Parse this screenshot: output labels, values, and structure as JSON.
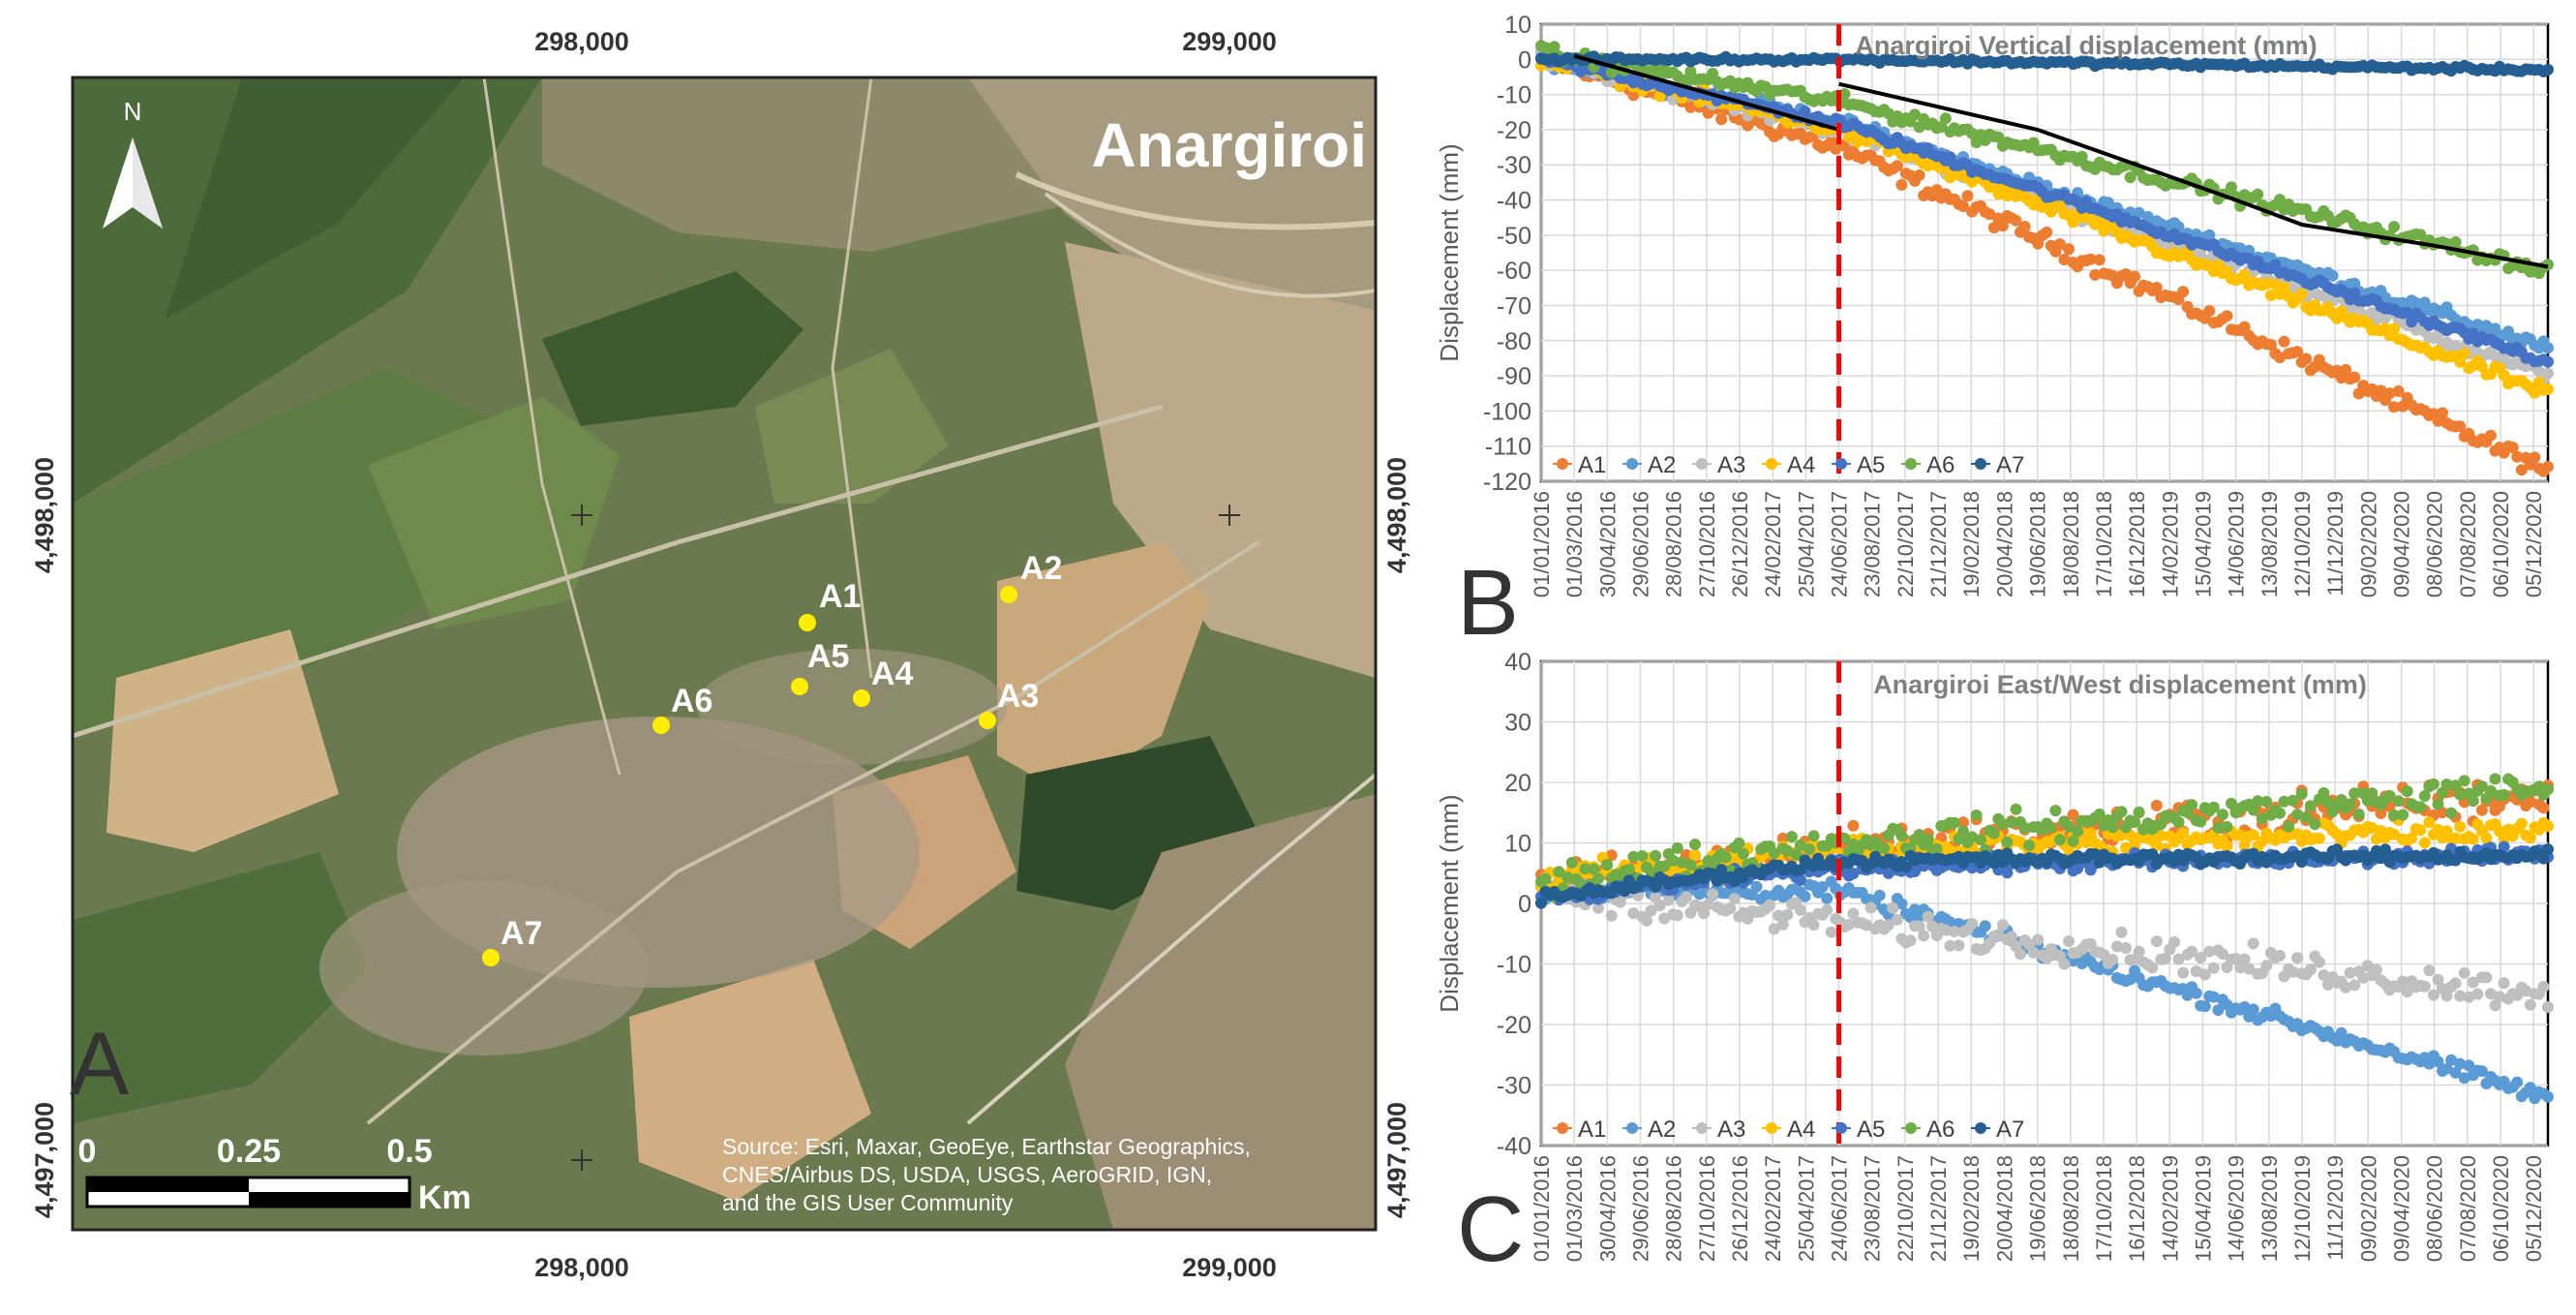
{
  "map": {
    "title": "Anargiroi",
    "panel_label": "A",
    "north_label": "N",
    "x_ticks_top": [
      "298,000",
      "299,000"
    ],
    "x_ticks_bottom": [
      "298,000",
      "299,000"
    ],
    "y_ticks_left": [
      "4,498,000",
      "4,497,000"
    ],
    "y_ticks_right": [
      "4,498,000",
      "4,497,000"
    ],
    "scale": {
      "labels": [
        "0",
        "0.25",
        "0.5"
      ],
      "unit": "Km"
    },
    "source_lines": [
      "Source: Esri, Maxar, GeoEye, Earthstar Geographics,",
      "CNES/Airbus DS, USDA, USGS, AeroGRID, IGN,",
      "and the GIS User Community"
    ],
    "points": [
      {
        "label": "A1"
      },
      {
        "label": "A2"
      },
      {
        "label": "A3"
      },
      {
        "label": "A4"
      },
      {
        "label": "A5"
      },
      {
        "label": "A6"
      },
      {
        "label": "A7"
      }
    ],
    "colors": {
      "points": "#ffee00",
      "label_text": "#ffffff"
    }
  },
  "chart_data": [
    {
      "panel_label": "B",
      "type": "scatter",
      "title": "Anargiroi Vertical displacement (mm)",
      "ylabel": "Displacement (mm)",
      "xlabel": "",
      "ylim": [
        -120,
        10
      ],
      "yticks": [
        10,
        0,
        -10,
        -20,
        -30,
        -40,
        -50,
        -60,
        -70,
        -80,
        -90,
        -100,
        -110,
        -120
      ],
      "xlim": [
        "01/01/2016",
        "31/12/2020"
      ],
      "xticks": [
        "01/01/2016",
        "01/03/2016",
        "30/04/2016",
        "29/06/2016",
        "28/08/2016",
        "27/10/2016",
        "26/12/2016",
        "24/02/2017",
        "25/04/2017",
        "24/06/2017",
        "23/08/2017",
        "22/10/2017",
        "21/12/2017",
        "19/02/2018",
        "20/04/2018",
        "19/06/2018",
        "18/08/2018",
        "17/10/2018",
        "16/12/2018",
        "14/02/2019",
        "15/04/2019",
        "14/06/2019",
        "13/08/2019",
        "12/10/2019",
        "11/12/2019",
        "09/02/2020",
        "09/04/2020",
        "08/06/2020",
        "07/08/2020",
        "06/10/2020",
        "05/12/2020"
      ],
      "event_line_date": "24/06/2017",
      "grid": true,
      "legend_position": "bottom-left",
      "series": [
        {
          "name": "A1",
          "color": "#ed7d31",
          "start": 0,
          "break": -25,
          "end": -117,
          "noise": 4
        },
        {
          "name": "A2",
          "color": "#5b9bd5",
          "start": 0,
          "break": -18,
          "end": -82,
          "noise": 3
        },
        {
          "name": "A3",
          "color": "#bfbfbf",
          "start": 0,
          "break": -20,
          "end": -90,
          "noise": 3
        },
        {
          "name": "A4",
          "color": "#ffc000",
          "start": 0,
          "break": -20,
          "end": -95,
          "noise": 3
        },
        {
          "name": "A5",
          "color": "#4472c4",
          "start": 0,
          "break": -18,
          "end": -86,
          "noise": 2
        },
        {
          "name": "A6",
          "color": "#70ad47",
          "start": 2,
          "break": -12,
          "end": -60,
          "noise": 3
        },
        {
          "name": "A7",
          "color": "#255e91",
          "start": 0,
          "break": 0,
          "end": -3,
          "noise": 1
        }
      ],
      "trend_lines": [
        {
          "label": "pre-event trend",
          "points": [
            [
              "01/03/2016",
              1
            ],
            [
              "24/06/2017",
              -20
            ]
          ]
        },
        {
          "label": "post-event trend",
          "points": [
            [
              "24/06/2017",
              -7
            ],
            [
              "19/06/2018",
              -20
            ],
            [
              "14/06/2019",
              -40
            ],
            [
              "12/10/2019",
              -47
            ],
            [
              "08/06/2020",
              -53
            ],
            [
              "31/12/2020",
              -59
            ]
          ]
        }
      ]
    },
    {
      "panel_label": "C",
      "type": "scatter",
      "title": "Anargiroi East/West displacement (mm)",
      "ylabel": "Displacement (mm)",
      "xlabel": "",
      "ylim": [
        -40,
        40
      ],
      "yticks": [
        40,
        30,
        20,
        10,
        0,
        -10,
        -20,
        -30,
        -40
      ],
      "xlim": [
        "01/01/2016",
        "31/12/2020"
      ],
      "xticks": [
        "01/01/2016",
        "01/03/2016",
        "30/04/2016",
        "29/06/2016",
        "28/08/2016",
        "27/10/2016",
        "26/12/2016",
        "24/02/2017",
        "25/04/2017",
        "24/06/2017",
        "23/08/2017",
        "22/10/2017",
        "21/12/2017",
        "19/02/2018",
        "20/04/2018",
        "19/06/2018",
        "18/08/2018",
        "17/10/2018",
        "16/12/2018",
        "14/02/2019",
        "15/04/2019",
        "14/06/2019",
        "13/08/2019",
        "12/10/2019",
        "11/12/2019",
        "09/02/2020",
        "09/04/2020",
        "08/06/2020",
        "07/08/2020",
        "06/10/2020",
        "05/12/2020"
      ],
      "event_line_date": "24/06/2017",
      "grid": true,
      "legend_position": "bottom-left",
      "series": [
        {
          "name": "A1",
          "color": "#ed7d31",
          "start": 3,
          "break": 9,
          "end": 18,
          "noise": 5
        },
        {
          "name": "A2",
          "color": "#5b9bd5",
          "start": 2,
          "break": 2,
          "end": -32,
          "noise": 2
        },
        {
          "name": "A3",
          "color": "#bfbfbf",
          "start": 2,
          "break": -3,
          "end": -15,
          "noise": 4
        },
        {
          "name": "A4",
          "color": "#ffc000",
          "start": 4,
          "break": 9,
          "end": 12,
          "noise": 3
        },
        {
          "name": "A5",
          "color": "#4472c4",
          "start": 1,
          "break": 6,
          "end": 8,
          "noise": 2
        },
        {
          "name": "A6",
          "color": "#70ad47",
          "start": 4,
          "break": 10,
          "end": 19,
          "noise": 4
        },
        {
          "name": "A7",
          "color": "#255e91",
          "start": 1,
          "break": 7,
          "end": 8,
          "noise": 1.5
        }
      ]
    }
  ]
}
